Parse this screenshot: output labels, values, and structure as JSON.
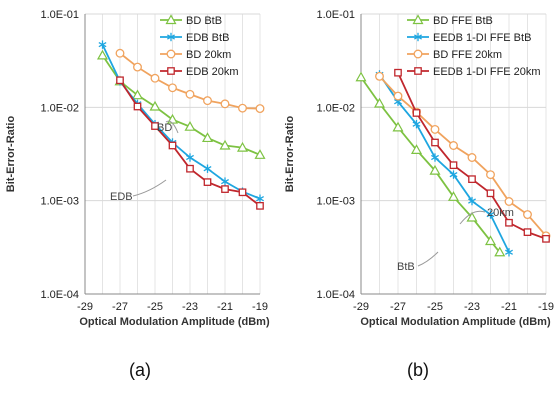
{
  "chart_data": [
    {
      "type": "line",
      "panel_label": "(a)",
      "xlabel": "Optical Modulation Amplitude (dBm)",
      "ylabel": "Bit-Error-Ratio",
      "xlim": [
        -29,
        -19
      ],
      "ylim": [
        0.0001,
        0.1
      ],
      "yscale": "log",
      "x_ticks": [
        "-29",
        "-27",
        "-25",
        "-23",
        "-21",
        "-19"
      ],
      "y_ticks": [
        "1.0E-04",
        "1.0E-03",
        "1.0E-02",
        "1.0E-01"
      ],
      "grid": true,
      "legend_position": "top-right",
      "annotations": [
        "BD",
        "EDB"
      ],
      "series": [
        {
          "name": "BD BtB",
          "color": "#7dc242",
          "marker": "triangle",
          "x": [
            -28,
            -27,
            -26,
            -25,
            -24,
            -23,
            -22,
            -21,
            -20,
            -19
          ],
          "y": [
            0.036,
            0.019,
            0.0135,
            0.0102,
            0.0074,
            0.0062,
            0.0047,
            0.0039,
            0.0037,
            0.0031
          ]
        },
        {
          "name": "EDB BtB",
          "color": "#1ea6e0",
          "marker": "asterisk",
          "x": [
            -28,
            -27,
            -26,
            -25,
            -24,
            -23,
            -22,
            -21,
            -20,
            -19
          ],
          "y": [
            0.047,
            0.019,
            0.0109,
            0.0066,
            0.0042,
            0.0029,
            0.0022,
            0.0016,
            0.00125,
            0.00105
          ]
        },
        {
          "name": "BD 20km",
          "color": "#f0a35e",
          "marker": "circle",
          "x": [
            -27,
            -26,
            -25,
            -24,
            -23,
            -22,
            -21,
            -20,
            -19
          ],
          "y": [
            0.038,
            0.027,
            0.0205,
            0.0162,
            0.0138,
            0.0118,
            0.0109,
            0.0098,
            0.0097
          ]
        },
        {
          "name": "EDB 20km",
          "color": "#c0272d",
          "marker": "square",
          "x": [
            -27,
            -26,
            -25,
            -24,
            -23,
            -22,
            -21,
            -20,
            -19
          ],
          "y": [
            0.0195,
            0.0102,
            0.0063,
            0.0039,
            0.0022,
            0.00158,
            0.00133,
            0.00123,
            0.00088
          ]
        }
      ]
    },
    {
      "type": "line",
      "panel_label": "(b)",
      "xlabel": "Optical Modulation Amplitude (dBm)",
      "ylabel": "Bit-Error-Ratio",
      "xlim": [
        -29,
        -19
      ],
      "ylim": [
        0.0001,
        0.1
      ],
      "yscale": "log",
      "x_ticks": [
        "-29",
        "-27",
        "-25",
        "-23",
        "-21",
        "-19"
      ],
      "y_ticks": [
        "1.0E-04",
        "1.0E-03",
        "1.0E-02",
        "1.0E-01"
      ],
      "grid": true,
      "legend_position": "top-right",
      "annotations": [
        "20km",
        "BtB"
      ],
      "series": [
        {
          "name": "BD FFE BtB",
          "color": "#7dc242",
          "marker": "triangle",
          "x": [
            -29,
            -28,
            -27,
            -26,
            -25,
            -24,
            -23,
            -22,
            -21.5
          ],
          "y": [
            0.021,
            0.011,
            0.0061,
            0.0035,
            0.0021,
            0.0011,
            0.00066,
            0.00037,
            0.00028
          ]
        },
        {
          "name": "EEDB 1-DI FFE BtB",
          "color": "#1ea6e0",
          "marker": "asterisk",
          "x": [
            -28,
            -27,
            -26,
            -25,
            -24,
            -23,
            -22,
            -21
          ],
          "y": [
            0.0225,
            0.0115,
            0.0066,
            0.0029,
            0.0019,
            0.00099,
            0.00071,
            0.00028
          ]
        },
        {
          "name": "BD FFE 20km",
          "color": "#f0a35e",
          "marker": "circle",
          "x": [
            -28,
            -27,
            -26,
            -25,
            -24,
            -23,
            -22,
            -21,
            -20,
            -19
          ],
          "y": [
            0.0215,
            0.0132,
            0.0089,
            0.0058,
            0.0039,
            0.0029,
            0.0019,
            0.00098,
            0.00071,
            0.00042
          ]
        },
        {
          "name": "EEDB 1-DI FFE 20km",
          "color": "#c0272d",
          "marker": "square",
          "x": [
            -27,
            -26,
            -25,
            -24,
            -23,
            -22,
            -21,
            -20,
            -19
          ],
          "y": [
            0.0235,
            0.0087,
            0.0042,
            0.0024,
            0.0017,
            0.0012,
            0.00058,
            0.00046,
            0.00039
          ]
        }
      ]
    }
  ]
}
